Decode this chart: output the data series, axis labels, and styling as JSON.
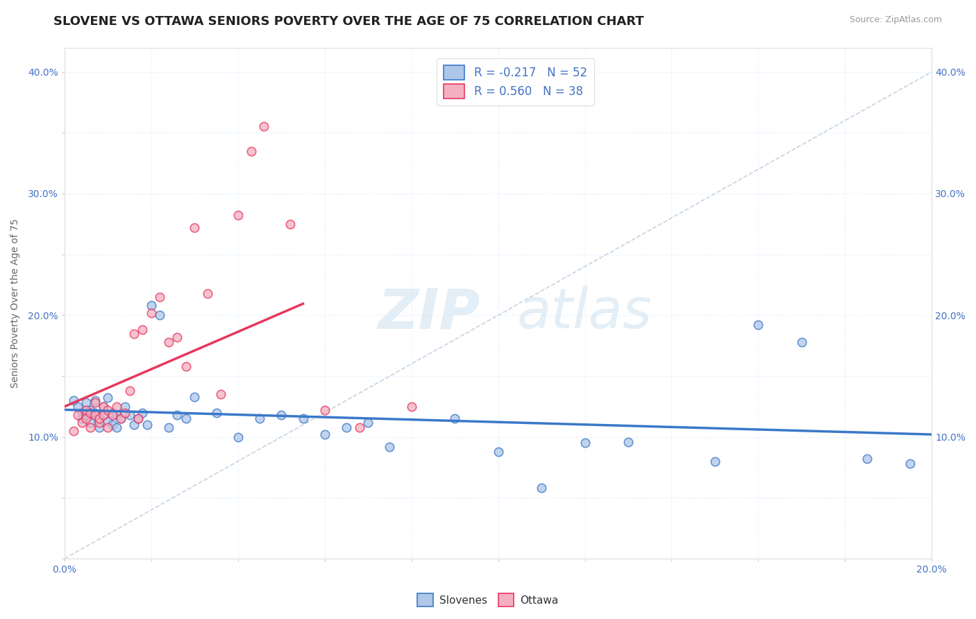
{
  "title": "SLOVENE VS OTTAWA SENIORS POVERTY OVER THE AGE OF 75 CORRELATION CHART",
  "source": "Source: ZipAtlas.com",
  "ylabel": "Seniors Poverty Over the Age of 75",
  "xlabel": "",
  "xlim": [
    0.0,
    0.2
  ],
  "ylim": [
    0.0,
    0.42
  ],
  "xticks": [
    0.0,
    0.02,
    0.04,
    0.06,
    0.08,
    0.1,
    0.12,
    0.14,
    0.16,
    0.18,
    0.2
  ],
  "yticks": [
    0.0,
    0.05,
    0.1,
    0.15,
    0.2,
    0.25,
    0.3,
    0.35,
    0.4
  ],
  "slovene_R": -0.217,
  "slovene_N": 52,
  "ottawa_R": 0.56,
  "ottawa_N": 38,
  "slovene_color": "#aec6e8",
  "ottawa_color": "#f4afc0",
  "slovene_line_color": "#3a78c9",
  "ottawa_line_color": "#e8365d",
  "trend_line_color": "#c8c8c8",
  "slovene_x": [
    0.002,
    0.003,
    0.004,
    0.004,
    0.005,
    0.005,
    0.006,
    0.006,
    0.007,
    0.007,
    0.008,
    0.008,
    0.009,
    0.009,
    0.01,
    0.01,
    0.011,
    0.011,
    0.012,
    0.012,
    0.013,
    0.014,
    0.015,
    0.016,
    0.017,
    0.018,
    0.019,
    0.02,
    0.022,
    0.024,
    0.026,
    0.028,
    0.03,
    0.035,
    0.04,
    0.045,
    0.05,
    0.055,
    0.06,
    0.065,
    0.07,
    0.075,
    0.09,
    0.1,
    0.11,
    0.12,
    0.13,
    0.15,
    0.16,
    0.17,
    0.185,
    0.195
  ],
  "slovene_y": [
    0.13,
    0.125,
    0.12,
    0.115,
    0.128,
    0.118,
    0.122,
    0.112,
    0.13,
    0.12,
    0.115,
    0.108,
    0.125,
    0.118,
    0.132,
    0.113,
    0.12,
    0.11,
    0.118,
    0.108,
    0.115,
    0.125,
    0.118,
    0.11,
    0.115,
    0.12,
    0.11,
    0.208,
    0.2,
    0.108,
    0.118,
    0.115,
    0.133,
    0.12,
    0.1,
    0.115,
    0.118,
    0.115,
    0.102,
    0.108,
    0.112,
    0.092,
    0.115,
    0.088,
    0.058,
    0.095,
    0.096,
    0.08,
    0.192,
    0.178,
    0.082,
    0.078
  ],
  "ottawa_x": [
    0.002,
    0.003,
    0.004,
    0.005,
    0.005,
    0.006,
    0.006,
    0.007,
    0.007,
    0.008,
    0.008,
    0.009,
    0.009,
    0.01,
    0.01,
    0.011,
    0.012,
    0.013,
    0.014,
    0.015,
    0.016,
    0.017,
    0.018,
    0.02,
    0.022,
    0.024,
    0.026,
    0.028,
    0.03,
    0.033,
    0.036,
    0.04,
    0.043,
    0.046,
    0.052,
    0.06,
    0.068,
    0.08
  ],
  "ottawa_y": [
    0.105,
    0.118,
    0.112,
    0.122,
    0.115,
    0.108,
    0.12,
    0.118,
    0.128,
    0.112,
    0.115,
    0.125,
    0.118,
    0.122,
    0.108,
    0.118,
    0.125,
    0.115,
    0.12,
    0.138,
    0.185,
    0.115,
    0.188,
    0.202,
    0.215,
    0.178,
    0.182,
    0.158,
    0.272,
    0.218,
    0.135,
    0.282,
    0.335,
    0.355,
    0.275,
    0.122,
    0.108,
    0.125
  ],
  "background_color": "#ffffff",
  "grid_color": "#ddeeff",
  "title_fontsize": 13,
  "axis_label_fontsize": 10,
  "tick_fontsize": 10,
  "legend_fontsize": 12
}
